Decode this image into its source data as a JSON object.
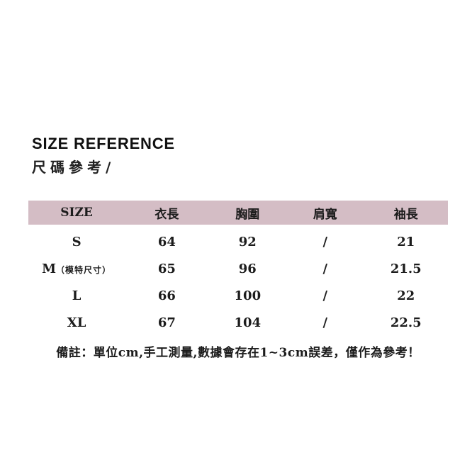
{
  "page": {
    "title": "SIZE REFERENCE",
    "subtitle": "尺碼參考/"
  },
  "table": {
    "headers": [
      "SIZE",
      "衣長",
      "胸圍",
      "肩寬",
      "袖長"
    ],
    "rows": [
      {
        "size": "S",
        "note": "",
        "length": "64",
        "bust": "92",
        "shoulder": "/",
        "sleeve": "21"
      },
      {
        "size": "M",
        "note": "（模特尺寸）",
        "length": "65",
        "bust": "96",
        "shoulder": "/",
        "sleeve": "21.5"
      },
      {
        "size": "L",
        "note": "",
        "length": "66",
        "bust": "100",
        "shoulder": "/",
        "sleeve": "22"
      },
      {
        "size": "XL",
        "note": "",
        "length": "67",
        "bust": "104",
        "shoulder": "/",
        "sleeve": "22.5"
      }
    ],
    "footnote": "備註：單位cm,手工測量,數據會存在1~3cm誤差，僅作為參考！"
  },
  "colors": {
    "header_bg": "#d4bdc5",
    "text": "#1c1c1c"
  }
}
